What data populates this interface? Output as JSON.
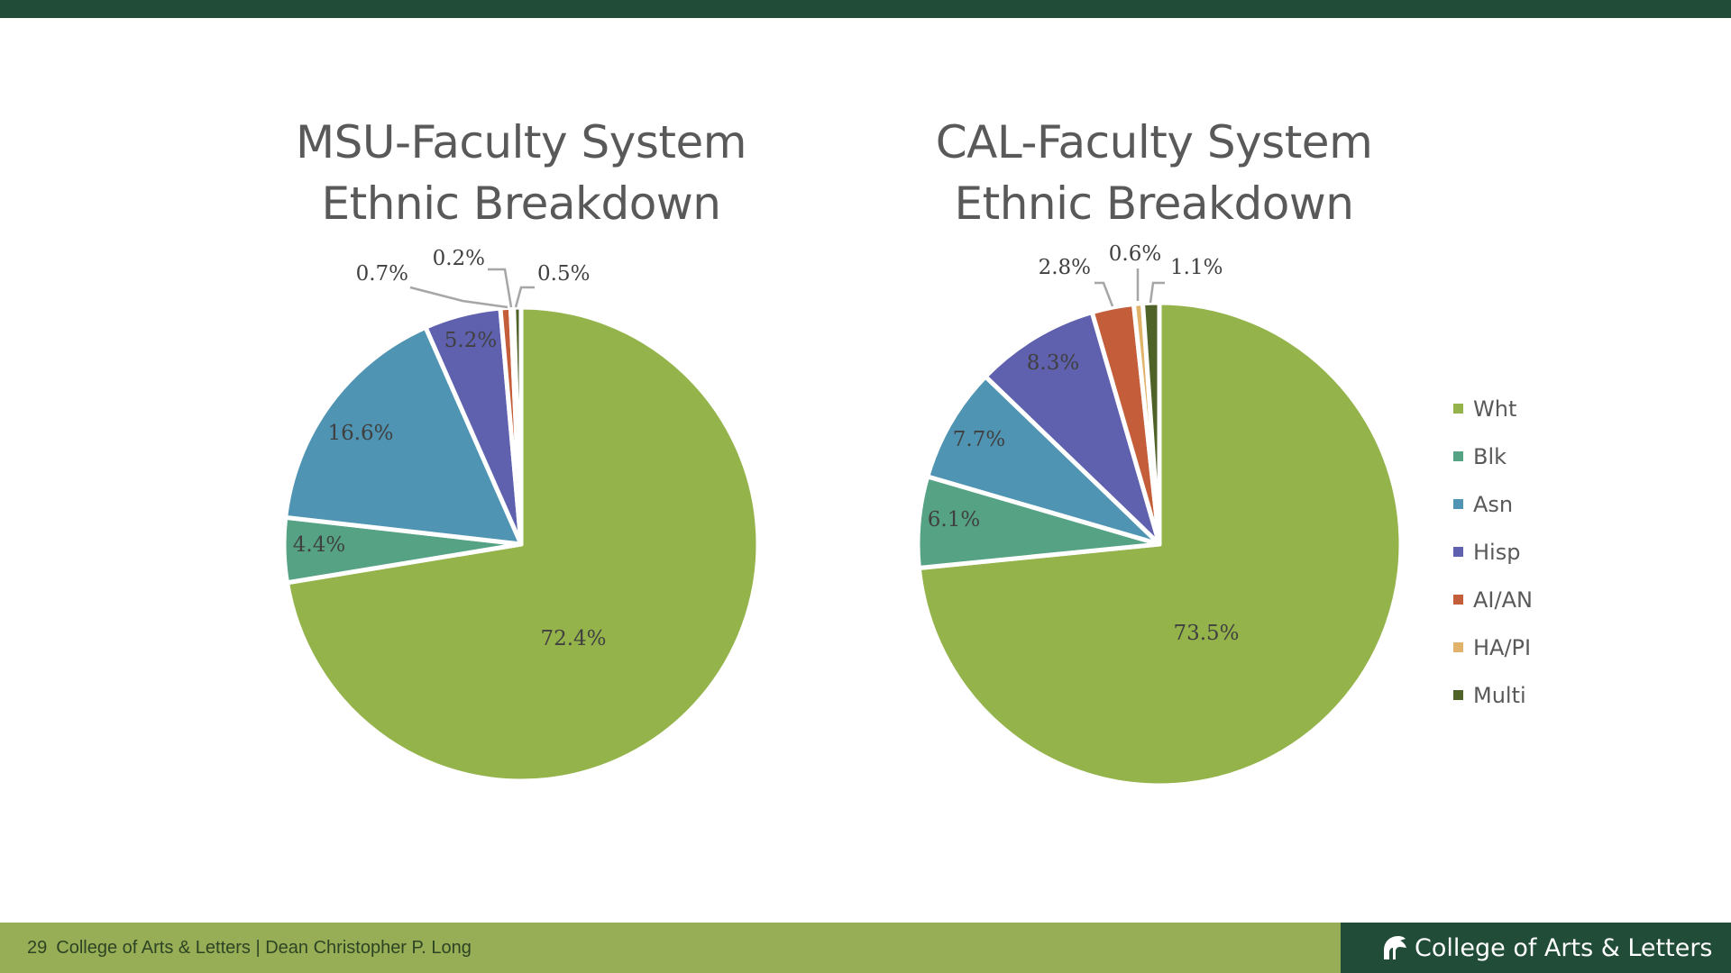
{
  "slide": {
    "page_number": "29",
    "footer_text": "College of Arts & Letters | Dean Christopher P. Long",
    "brand": "College of Arts & Letters",
    "colors": {
      "top_bar": "#204c38",
      "footer_left": "#97ae56",
      "footer_right": "#204c38"
    }
  },
  "legend": [
    "Wht",
    "Blk",
    "Asn",
    "Hisp",
    "AI/AN",
    "HA/PI",
    "Multi"
  ],
  "colors": [
    "#94b34b",
    "#55a384",
    "#4f94b3",
    "#5f60ae",
    "#c45e3a",
    "#e1b36a",
    "#4f6228"
  ],
  "chart_data": [
    {
      "type": "pie",
      "title": [
        "MSU-Faculty System",
        "Ethnic Breakdown"
      ],
      "categories": [
        "Wht",
        "Blk",
        "Asn",
        "Hisp",
        "AI/AN",
        "HA/PI",
        "Multi"
      ],
      "values": [
        72.4,
        4.4,
        16.6,
        5.2,
        0.7,
        0.2,
        0.5
      ],
      "labels": [
        "72.4%",
        "4.4%",
        "16.6%",
        "5.2%",
        "0.7%",
        "0.2%",
        "0.5%"
      ],
      "legend": "none"
    },
    {
      "type": "pie",
      "title": [
        "CAL-Faculty System",
        "Ethnic Breakdown"
      ],
      "categories": [
        "Wht",
        "Blk",
        "Asn",
        "Hisp",
        "AI/AN",
        "HA/PI",
        "Multi"
      ],
      "values": [
        73.5,
        6.1,
        7.7,
        8.3,
        2.8,
        0.6,
        1.1
      ],
      "labels": [
        "73.5%",
        "6.1%",
        "7.7%",
        "8.3%",
        "2.8%",
        "0.6%",
        "1.1%"
      ],
      "legend": "right"
    }
  ]
}
